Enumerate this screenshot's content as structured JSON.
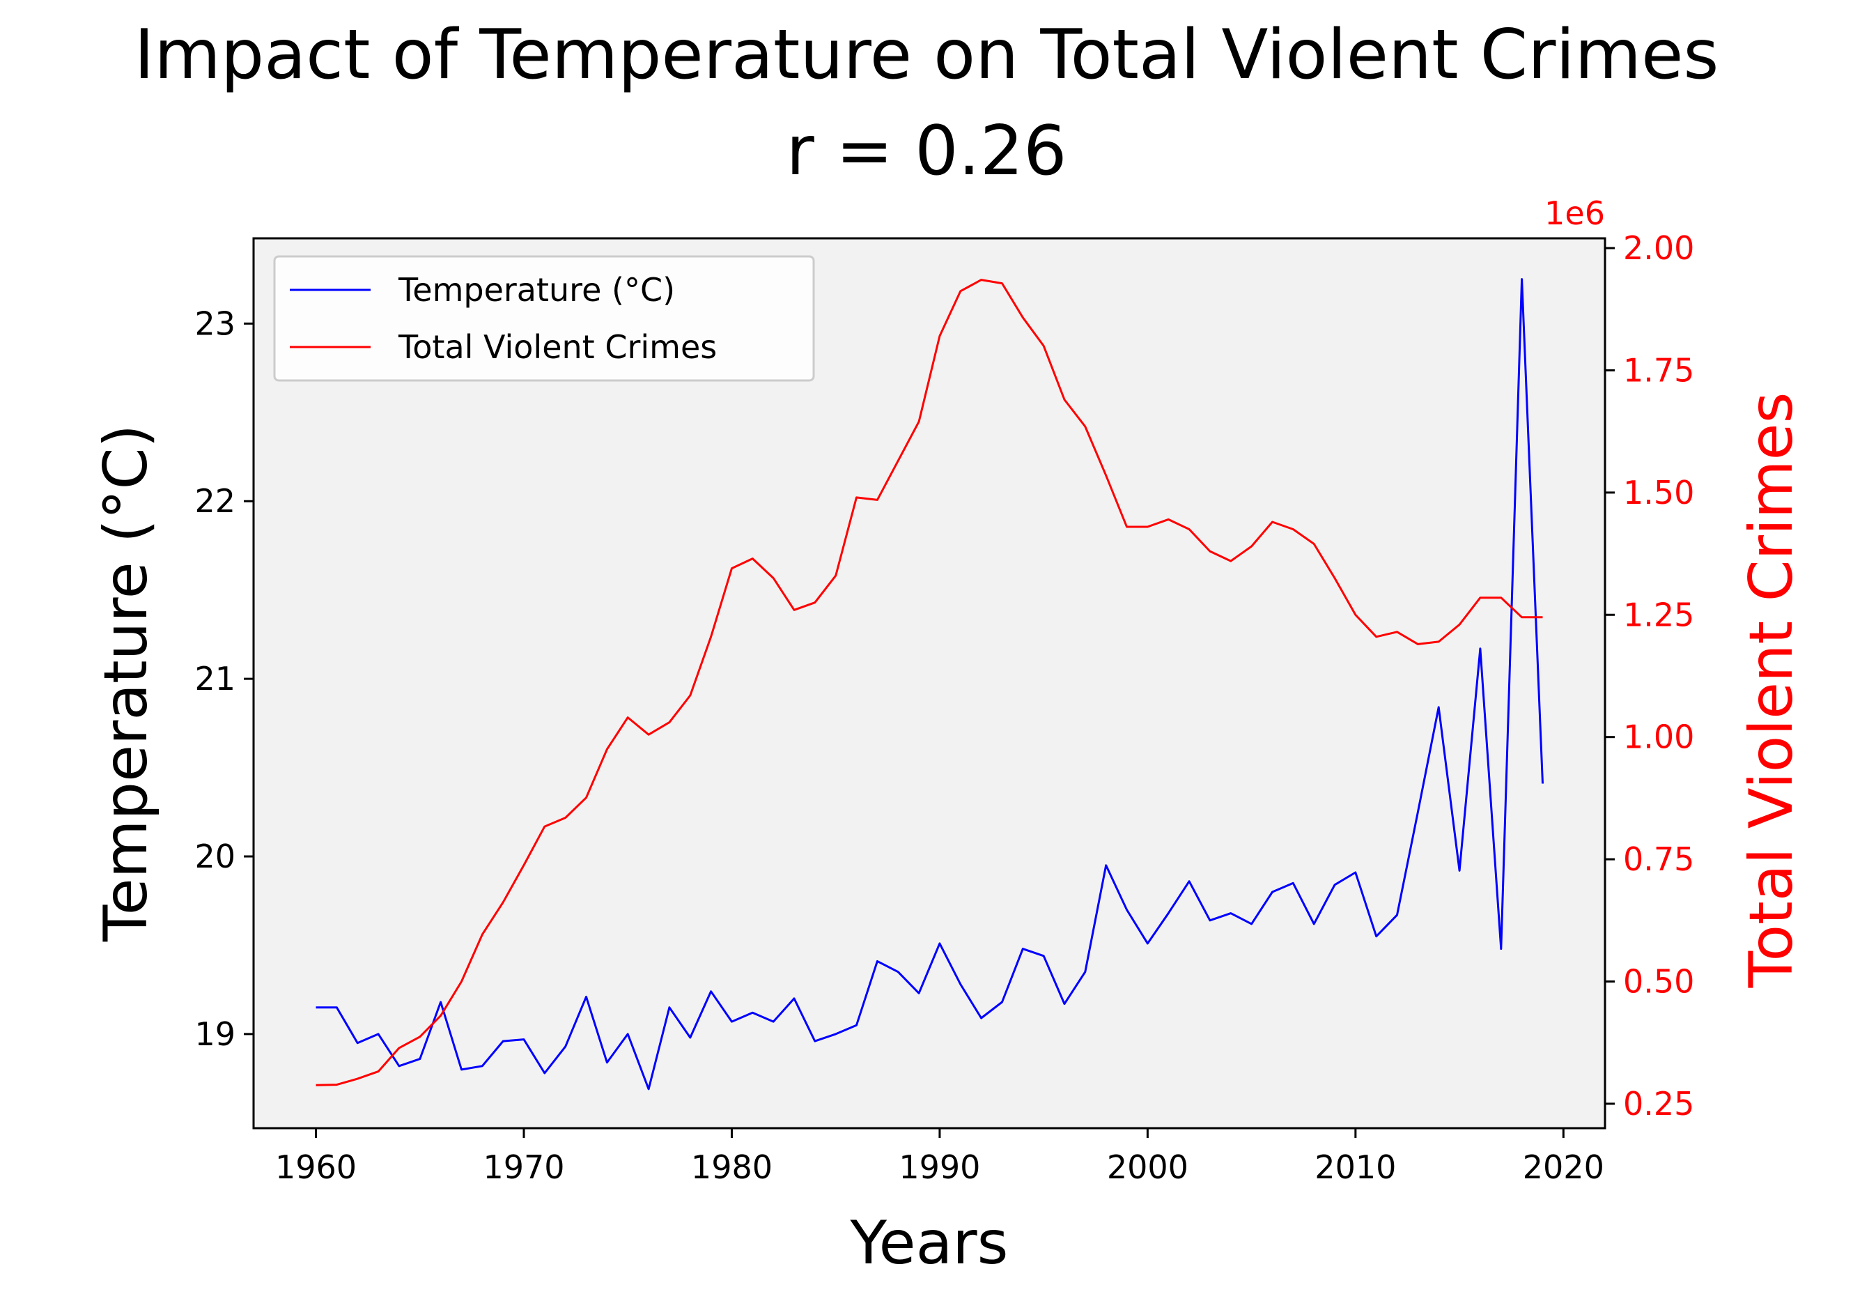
{
  "chart_data": {
    "type": "line",
    "title": "Impact of Temperature on Total Violent Crimes",
    "subtitle": "r = 0.26",
    "xlabel": "Years",
    "ylabel_left": "Temperature (°C)",
    "ylabel_right": "Total Violent Crimes",
    "right_axis_multiplier": "1e6",
    "xlim": [
      1957,
      2022
    ],
    "ylim_left": [
      18.47,
      23.48
    ],
    "ylim_right": [
      0.2,
      2.02
    ],
    "x_ticks": [
      1960,
      1970,
      1980,
      1990,
      2000,
      2010,
      2020
    ],
    "x_tick_labels": [
      "1960",
      "1970",
      "1980",
      "1990",
      "2000",
      "2010",
      "2020"
    ],
    "y_left_ticks": [
      19,
      20,
      21,
      22,
      23
    ],
    "y_left_tick_labels": [
      "19",
      "20",
      "21",
      "22",
      "23"
    ],
    "y_right_ticks": [
      0.25,
      0.5,
      0.75,
      1.0,
      1.25,
      1.5,
      1.75,
      2.0
    ],
    "y_right_tick_labels": [
      "0.25",
      "0.50",
      "0.75",
      "1.00",
      "1.25",
      "1.50",
      "1.75",
      "2.00"
    ],
    "legend_position": "upper-left",
    "grid": false,
    "plot_background": "#f2f2f2",
    "x": [
      1960,
      1961,
      1962,
      1963,
      1964,
      1965,
      1966,
      1967,
      1968,
      1969,
      1970,
      1971,
      1972,
      1973,
      1974,
      1975,
      1976,
      1977,
      1978,
      1979,
      1980,
      1981,
      1982,
      1983,
      1984,
      1985,
      1986,
      1987,
      1988,
      1989,
      1990,
      1991,
      1992,
      1993,
      1994,
      1995,
      1996,
      1997,
      1998,
      1999,
      2000,
      2001,
      2002,
      2003,
      2004,
      2005,
      2006,
      2007,
      2008,
      2009,
      2010,
      2011,
      2012,
      2013,
      2014,
      2015,
      2016,
      2017,
      2018,
      2019
    ],
    "series": [
      {
        "name": "Temperature (°C)",
        "axis": "left",
        "color": "#0000ff",
        "values": [
          19.15,
          19.15,
          18.95,
          19.0,
          18.82,
          18.86,
          19.18,
          18.8,
          18.82,
          18.96,
          18.97,
          18.78,
          18.93,
          19.21,
          18.84,
          19.0,
          18.69,
          19.15,
          18.98,
          19.24,
          19.07,
          19.12,
          19.07,
          19.2,
          18.96,
          19.0,
          19.05,
          19.41,
          19.35,
          19.23,
          19.51,
          19.28,
          19.09,
          19.18,
          19.48,
          19.44,
          19.17,
          19.35,
          19.95,
          19.7,
          19.51,
          19.68,
          19.86,
          19.64,
          19.68,
          19.62,
          19.8,
          19.85,
          19.62,
          19.84,
          19.91,
          19.55,
          19.67,
          20.25,
          20.84,
          19.92,
          21.17,
          19.48,
          23.25,
          20.41
        ]
      },
      {
        "name": "Total Violent Crimes",
        "axis": "right",
        "color": "#ff0000",
        "values": [
          0.288,
          0.289,
          0.301,
          0.316,
          0.364,
          0.387,
          0.43,
          0.5,
          0.596,
          0.662,
          0.738,
          0.817,
          0.835,
          0.876,
          0.975,
          1.04,
          1.005,
          1.03,
          1.085,
          1.205,
          1.345,
          1.365,
          1.325,
          1.26,
          1.275,
          1.33,
          1.49,
          1.485,
          1.565,
          1.645,
          1.82,
          1.912,
          1.935,
          1.928,
          1.858,
          1.8,
          1.69,
          1.635,
          1.535,
          1.43,
          1.43,
          1.445,
          1.425,
          1.38,
          1.36,
          1.39,
          1.44,
          1.425,
          1.395,
          1.325,
          1.25,
          1.205,
          1.215,
          1.19,
          1.195,
          1.23,
          1.285,
          1.285,
          1.245,
          1.245
        ]
      }
    ]
  }
}
